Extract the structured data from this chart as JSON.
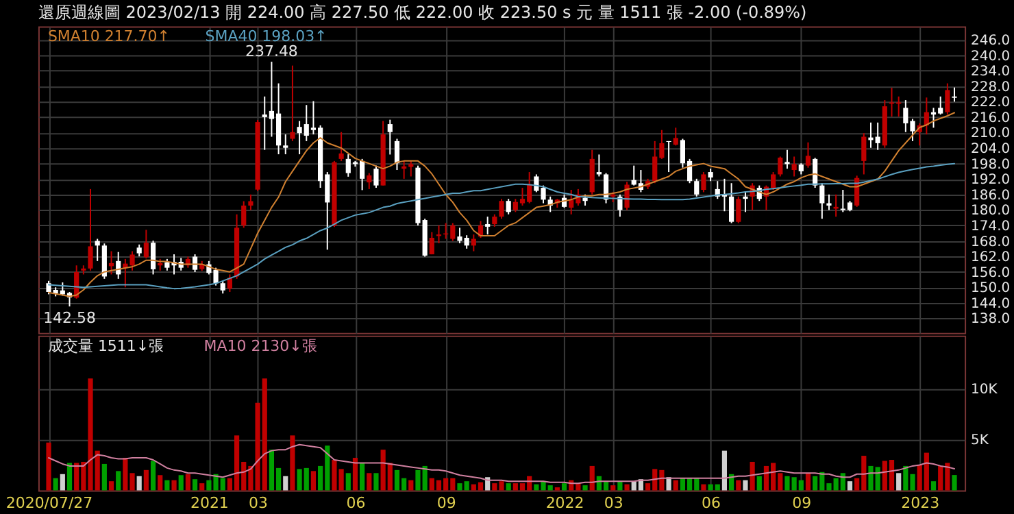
{
  "chart_data": [
    {
      "type": "candlestick",
      "title": "還原週線圖  2023/02/13  開 224.00  高 227.50  低 222.00  收 223.50 s 元  量 1511 張  -2.00 (-0.89%)",
      "categories": [
        "2020/07/27",
        null,
        null,
        null,
        null,
        null,
        null,
        null,
        null,
        null,
        null,
        null,
        null,
        null,
        null,
        null,
        null,
        null,
        null,
        null,
        null,
        null,
        null,
        "2021",
        null,
        null,
        null,
        null,
        null,
        null,
        "03",
        null,
        null,
        null,
        null,
        null,
        null,
        null,
        null,
        null,
        null,
        null,
        null,
        null,
        "06",
        null,
        null,
        null,
        null,
        null,
        null,
        null,
        null,
        null,
        null,
        null,
        null,
        "09",
        null,
        null,
        null,
        null,
        null,
        null,
        null,
        null,
        null,
        null,
        null,
        null,
        null,
        null,
        null,
        null,
        "2022",
        null,
        null,
        null,
        null,
        null,
        null,
        "03",
        null,
        null,
        null,
        null,
        null,
        null,
        null,
        null,
        null,
        null,
        null,
        null,
        null,
        "06",
        null,
        null,
        null,
        null,
        null,
        null,
        null,
        null,
        null,
        null,
        null,
        null,
        "09",
        null,
        null,
        null,
        null,
        null,
        null,
        null,
        null,
        null,
        null,
        null,
        null,
        null,
        null,
        null,
        null,
        "2023",
        null,
        null,
        null,
        null,
        null
      ],
      "ohlc": [
        [
          151.6,
          152.5,
          147.3,
          148.2
        ],
        [
          149,
          150,
          146.5,
          147.6
        ],
        [
          148.8,
          151.9,
          146.8,
          147.3
        ],
        [
          147.8,
          148.2,
          142.58,
          146.1
        ],
        [
          146,
          158.5,
          145.6,
          155.9
        ],
        [
          156.5,
          158.5,
          155,
          157.3
        ],
        [
          157.3,
          188.1,
          156.5,
          165.9
        ],
        [
          168,
          168.8,
          160.2,
          166.2
        ],
        [
          166.2,
          167,
          153.3,
          154.2
        ],
        [
          158.2,
          164,
          155,
          159.4
        ],
        [
          160.2,
          163.7,
          153.3,
          155
        ],
        [
          157.5,
          161,
          150,
          159.2
        ],
        [
          158.5,
          164,
          156.5,
          162.7
        ],
        [
          165.4,
          166.6,
          162,
          163.2
        ],
        [
          161.7,
          172.3,
          161.2,
          167.3
        ],
        [
          167.3,
          168.1,
          155,
          157
        ],
        [
          158.5,
          161,
          156.5,
          159.4
        ],
        [
          159.7,
          161,
          156.5,
          157.6
        ],
        [
          159.9,
          162.8,
          155,
          158.5
        ],
        [
          159.9,
          161.4,
          156.5,
          157.6
        ],
        [
          158.5,
          161.9,
          157.6,
          161
        ],
        [
          161.9,
          162.8,
          155.9,
          156.8
        ],
        [
          157.1,
          160.2,
          156.4,
          158.9
        ],
        [
          158.9,
          160.2,
          155,
          155.6
        ],
        [
          156.8,
          157.6,
          150.7,
          151.6
        ],
        [
          151.6,
          152.5,
          147.6,
          148.8
        ],
        [
          149.5,
          155,
          148.2,
          153.7
        ],
        [
          154.2,
          178.3,
          153.3,
          173.1
        ],
        [
          174,
          183.4,
          173.1,
          181.7
        ],
        [
          181.7,
          186,
          180,
          183.4
        ],
        [
          187.9,
          214.9,
          187.3,
          214.1
        ],
        [
          217,
          224,
          203.3,
          216
        ],
        [
          218.4,
          237.48,
          208.4,
          215.3
        ],
        [
          217.4,
          229.1,
          201.6,
          205
        ],
        [
          205,
          209.3,
          201.6,
          204.1
        ],
        [
          207.6,
          236,
          206.7,
          210.2
        ],
        [
          212.2,
          214.5,
          201.6,
          209.8
        ],
        [
          213.3,
          220.7,
          206.7,
          208.8
        ],
        [
          211.9,
          222.2,
          209.3,
          211
        ],
        [
          211.9,
          212.8,
          188.6,
          191.2
        ],
        [
          193.8,
          194.7,
          164.6,
          182.9
        ],
        [
          173.9,
          199,
          173.4,
          198.5
        ],
        [
          199.8,
          210.2,
          199,
          201.9
        ],
        [
          199.8,
          201.6,
          192.9,
          194.3
        ],
        [
          198.5,
          199,
          196.8,
          197.8
        ],
        [
          199,
          199.8,
          187.7,
          192.1
        ],
        [
          190.7,
          194.3,
          188.1,
          193.4
        ],
        [
          196,
          197.2,
          188.6,
          189.5
        ],
        [
          189.5,
          214.5,
          189.5,
          209.3
        ],
        [
          213.3,
          215,
          201.5,
          210.2
        ],
        [
          206.7,
          207.6,
          195.5,
          198.1
        ],
        [
          196,
          199,
          192.1,
          196.9
        ],
        [
          196.7,
          199,
          193,
          197.8
        ],
        [
          196.4,
          197.2,
          174,
          174.9
        ],
        [
          176.1,
          176.6,
          161.9,
          162.3
        ],
        [
          162.8,
          171.4,
          162.8,
          169.2
        ],
        [
          169.9,
          174,
          167.1,
          170.5
        ],
        [
          170.5,
          174.9,
          168.8,
          170.9
        ],
        [
          168.8,
          174.9,
          168,
          174
        ],
        [
          169.7,
          173.1,
          167.1,
          168
        ],
        [
          169.2,
          170.2,
          165,
          166.2
        ],
        [
          166.2,
          170.5,
          164,
          168.8
        ],
        [
          169.7,
          175.7,
          169.2,
          174
        ],
        [
          174.5,
          177.4,
          170.5,
          173.5
        ],
        [
          174.5,
          178.3,
          173.5,
          177.4
        ],
        [
          177.4,
          184.3,
          176.6,
          183.5
        ],
        [
          183.5,
          184.3,
          178.3,
          179.2
        ],
        [
          180,
          184.3,
          179.2,
          183.1
        ],
        [
          182.6,
          188.6,
          181.7,
          184.3
        ],
        [
          183.1,
          194.7,
          182.6,
          190
        ],
        [
          193,
          193.8,
          186.9,
          187.4
        ],
        [
          188.6,
          189.5,
          182.6,
          184
        ],
        [
          184,
          185.2,
          179.2,
          181.7
        ],
        [
          182.6,
          184.3,
          180.9,
          184
        ],
        [
          184.7,
          186,
          180.9,
          181.2
        ],
        [
          180.9,
          187.8,
          178.3,
          183.8
        ],
        [
          182.6,
          188.1,
          181.7,
          186
        ],
        [
          184.7,
          186,
          181.7,
          183.5
        ],
        [
          186.9,
          203.3,
          186,
          199.8
        ],
        [
          194.7,
          201.5,
          193,
          193.8
        ],
        [
          193.8,
          194.3,
          182.6,
          184
        ],
        [
          185.2,
          186.9,
          183,
          186
        ],
        [
          185.2,
          186,
          177.4,
          180
        ],
        [
          180.9,
          190.9,
          180,
          189.8
        ],
        [
          191.6,
          197.2,
          189.5,
          189.8
        ],
        [
          190.4,
          195.5,
          186.9,
          187.8
        ],
        [
          189,
          192.1,
          188.1,
          191.2
        ],
        [
          191.2,
          206.7,
          190.4,
          200.7
        ],
        [
          200.2,
          211,
          199.8,
          205.9
        ],
        [
          206.7,
          206.7,
          194.7,
          206.4
        ],
        [
          205.3,
          211.9,
          205,
          207.9
        ],
        [
          207.1,
          207.6,
          196.4,
          198.1
        ],
        [
          199,
          199.8,
          190.4,
          191.2
        ],
        [
          191.2,
          192.1,
          185.2,
          186
        ],
        [
          187.8,
          194.7,
          186.9,
          193.8
        ],
        [
          194.7,
          196,
          191.2,
          192.6
        ],
        [
          188.1,
          191.2,
          184.3,
          185.2
        ],
        [
          186,
          192.1,
          179.5,
          185.2
        ],
        [
          185.2,
          190.4,
          174.9,
          175.4
        ],
        [
          175.4,
          185.2,
          174.9,
          184.3
        ],
        [
          185.2,
          186.9,
          179.2,
          184.3
        ],
        [
          185.2,
          190.4,
          180,
          189.5
        ],
        [
          188.6,
          189.5,
          183.5,
          184.3
        ],
        [
          185.2,
          189.5,
          180,
          189
        ],
        [
          188.6,
          194.7,
          187.8,
          193.8
        ],
        [
          193.8,
          200.7,
          193,
          200.3
        ],
        [
          198.6,
          203.3,
          196,
          197.8
        ],
        [
          195.5,
          200.7,
          193,
          197.8
        ],
        [
          197.6,
          198.1,
          193.8,
          195
        ],
        [
          197.2,
          206.2,
          196.4,
          201
        ],
        [
          199.8,
          200.2,
          188.6,
          189.5
        ],
        [
          189.5,
          190.4,
          176.6,
          182.6
        ],
        [
          182.6,
          186,
          180,
          181.7
        ],
        [
          180.5,
          186,
          177.4,
          181.2
        ],
        [
          180.5,
          187.8,
          179.2,
          180
        ],
        [
          182.9,
          183.5,
          179.5,
          180
        ],
        [
          181.7,
          193.3,
          181.2,
          192.4
        ],
        [
          199,
          209.8,
          193.8,
          208.4
        ],
        [
          208.1,
          213.9,
          204.1,
          207.1
        ],
        [
          208.4,
          213.9,
          203.3,
          205.9
        ],
        [
          205,
          222.6,
          204.1,
          220.2
        ],
        [
          221.2,
          227.4,
          216.2,
          221.7
        ],
        [
          221.2,
          224,
          216.2,
          221.7
        ],
        [
          219.6,
          222.6,
          210.2,
          213.6
        ],
        [
          214.5,
          215.3,
          206.7,
          210.5
        ],
        [
          210.2,
          213.6,
          205,
          212.8
        ],
        [
          212.8,
          223.6,
          209.3,
          217.9
        ],
        [
          217.9,
          219.6,
          211.9,
          217
        ],
        [
          219.6,
          224,
          217,
          217.4
        ],
        [
          217.9,
          229.1,
          217,
          226.5
        ],
        [
          224,
          227.5,
          222,
          223.5
        ]
      ],
      "colors": [
        "#ffffff",
        "#ffffff",
        "#ffffff",
        "#ffffff",
        "#c00000",
        "#c00000",
        "#c00000",
        "#ffffff",
        "#ffffff",
        "#c00000",
        "#ffffff",
        "#c00000",
        "#c00000",
        "#ffffff",
        "#c00000",
        "#ffffff",
        "#c00000",
        "#ffffff",
        "#ffffff",
        "#ffffff",
        "#c00000",
        "#ffffff",
        "#c00000",
        "#ffffff",
        "#ffffff",
        "#ffffff",
        "#c00000",
        "#c00000",
        "#c00000",
        "#c00000",
        "#c00000",
        "#ffffff",
        "#ffffff",
        "#ffffff",
        "#ffffff",
        "#c00000",
        "#ffffff",
        "#ffffff",
        "#ffffff",
        "#ffffff",
        "#ffffff",
        "#c00000",
        "#c00000",
        "#ffffff",
        "#ffffff",
        "#ffffff",
        "#c00000",
        "#ffffff",
        "#c00000",
        "#ffffff",
        "#ffffff",
        "#c00000",
        "#c00000",
        "#ffffff",
        "#ffffff",
        "#c00000",
        "#c00000",
        "#c00000",
        "#c00000",
        "#ffffff",
        "#ffffff",
        "#c00000",
        "#c00000",
        "#ffffff",
        "#c00000",
        "#c00000",
        "#ffffff",
        "#c00000",
        "#c00000",
        "#c00000",
        "#ffffff",
        "#ffffff",
        "#ffffff",
        "#c00000",
        "#ffffff",
        "#c00000",
        "#c00000",
        "#ffffff",
        "#c00000",
        "#ffffff",
        "#ffffff",
        "#c00000",
        "#ffffff",
        "#c00000",
        "#ffffff",
        "#ffffff",
        "#c00000",
        "#c00000",
        "#c00000",
        "#ffffff",
        "#c00000",
        "#ffffff",
        "#ffffff",
        "#ffffff",
        "#c00000",
        "#ffffff",
        "#ffffff",
        "#ffffff",
        "#ffffff",
        "#c00000",
        "#ffffff",
        "#c00000",
        "#ffffff",
        "#c00000",
        "#c00000",
        "#c00000",
        "#ffffff",
        "#c00000",
        "#ffffff",
        "#c00000",
        "#ffffff",
        "#ffffff",
        "#ffffff",
        "#c00000",
        "#ffffff",
        "#ffffff",
        "#c00000",
        "#c00000",
        "#ffffff",
        "#ffffff",
        "#c00000",
        "#c00000",
        "#c00000",
        "#ffffff",
        "#ffffff",
        "#c00000",
        "#c00000",
        "#ffffff",
        "#ffffff",
        "#c00000",
        "#ffffff"
      ],
      "series": [
        {
          "name": "SMA10 217.70↑",
          "type": "line",
          "color": "#d08030",
          "values": [
            148,
            147.5,
            147,
            146.5,
            147,
            149,
            152,
            154.5,
            156,
            156.5,
            157,
            157.5,
            158,
            159,
            160.5,
            160.5,
            160,
            160,
            159.5,
            159,
            159,
            159,
            159,
            158,
            157,
            156.5,
            156,
            157.5,
            159,
            165,
            171,
            176,
            181,
            185,
            191,
            195,
            199,
            203,
            206,
            208,
            206,
            205,
            204,
            202,
            200,
            199,
            198,
            197,
            196,
            197,
            198.5,
            199,
            199,
            199,
            197,
            194,
            190,
            186,
            183,
            179,
            176,
            172,
            170,
            170,
            170,
            172,
            174,
            175,
            177,
            179,
            181,
            181.5,
            182,
            183,
            183.5,
            184,
            185,
            185.5,
            185.5,
            186,
            186,
            186.5,
            187,
            188,
            188.5,
            189,
            190,
            191,
            192,
            193,
            195,
            196,
            197,
            197.5,
            198,
            197,
            196.5,
            196,
            194,
            192,
            189,
            188,
            187,
            186,
            187,
            188.5,
            190,
            191,
            192.5,
            193.5,
            194,
            193,
            192,
            191,
            190,
            189,
            189,
            190,
            191,
            192,
            195,
            199,
            203,
            206,
            209,
            212,
            213,
            214.5,
            215.5,
            216.5,
            217.7
          ]
        },
        {
          "name": "SMA40 198.03↑",
          "type": "line",
          "color": "#5aa0c0",
          "values": [
            151,
            150.8,
            150.6,
            150.4,
            150.2,
            150,
            150.2,
            150.4,
            150.6,
            150.8,
            151,
            151,
            151,
            151,
            151,
            150.6,
            150.2,
            149.8,
            149.5,
            149.6,
            149.9,
            150.2,
            150.6,
            151,
            151.5,
            152.5,
            153.5,
            154.5,
            156,
            157.5,
            159,
            161,
            162.5,
            164,
            165.5,
            166.5,
            168,
            169,
            170.5,
            172,
            173,
            174.5,
            176,
            177,
            178,
            178.5,
            179,
            180,
            181,
            181.5,
            182.5,
            183,
            183.5,
            184,
            184.5,
            185,
            185.5,
            186,
            186.5,
            186.5,
            187,
            187.5,
            187.5,
            188,
            188.5,
            189,
            189.5,
            190,
            190,
            189.8,
            189.5,
            189,
            188,
            187,
            186.5,
            186,
            185.2,
            185,
            184.8,
            184.7,
            184.6,
            184.5,
            184.4,
            184.3,
            184.2,
            184.2,
            184.1,
            184.1,
            184,
            184,
            184,
            184,
            184.2,
            184.6,
            185,
            185.4,
            185.8,
            186,
            186.3,
            186.6,
            187,
            187.2,
            187.5,
            188,
            188.3,
            188.6,
            189,
            189.3,
            189.6,
            190,
            190,
            190.1,
            190.1,
            190.2,
            190.2,
            190.3,
            190.3,
            190.8,
            191.4,
            192,
            192.9,
            193.8,
            194.6,
            195.2,
            195.7,
            196.2,
            196.7,
            197,
            197.4,
            197.7,
            198
          ]
        }
      ],
      "annotations": [
        {
          "text": "237.48",
          "y": 237.48
        },
        {
          "text": "142.58",
          "y": 142.58
        }
      ],
      "ylim": [
        132.3,
        251.2
      ],
      "yticks": [
        {
          "value": 138,
          "label": "138.0"
        },
        {
          "value": 144,
          "label": "144.0"
        },
        {
          "value": 150,
          "label": "150.0"
        },
        {
          "value": 156,
          "label": "156.0"
        },
        {
          "value": 162,
          "label": "162.0"
        },
        {
          "value": 168,
          "label": "168.0"
        },
        {
          "value": 174,
          "label": "174.0"
        },
        {
          "value": 180,
          "label": "180.0"
        },
        {
          "value": 186,
          "label": "186.0"
        },
        {
          "value": 192,
          "label": "192.0"
        },
        {
          "value": 198,
          "label": "198.0"
        },
        {
          "value": 204,
          "label": "204.0"
        },
        {
          "value": 210,
          "label": "210.0"
        },
        {
          "value": 216,
          "label": "216.0"
        },
        {
          "value": 222,
          "label": "222.0"
        },
        {
          "value": 228,
          "label": "228.0"
        },
        {
          "value": 234,
          "label": "234.0"
        },
        {
          "value": 240,
          "label": "240.0"
        },
        {
          "value": 246,
          "label": "246.0"
        }
      ],
      "grid": true,
      "tick_labels": "y",
      "legend": "top left"
    },
    {
      "type": "bar",
      "categories": [
        "2020/07/27",
        null,
        null,
        null,
        null,
        null,
        null,
        null,
        null,
        null,
        null,
        null,
        null,
        null,
        null,
        null,
        null,
        null,
        null,
        null,
        null,
        null,
        null,
        "2021",
        null,
        null,
        null,
        null,
        null,
        null,
        "03",
        null,
        null,
        null,
        null,
        null,
        null,
        null,
        null,
        null,
        null,
        null,
        null,
        null,
        "06",
        null,
        null,
        null,
        null,
        null,
        null,
        null,
        null,
        null,
        null,
        null,
        null,
        "09",
        null,
        null,
        null,
        null,
        null,
        null,
        null,
        null,
        null,
        null,
        null,
        null,
        null,
        null,
        null,
        null,
        "2022",
        null,
        null,
        null,
        null,
        null,
        null,
        "03",
        null,
        null,
        null,
        null,
        null,
        null,
        null,
        null,
        null,
        null,
        null,
        null,
        null,
        "06",
        null,
        null,
        null,
        null,
        null,
        null,
        null,
        null,
        null,
        null,
        null,
        null,
        "09",
        null,
        null,
        null,
        null,
        null,
        null,
        null,
        null,
        null,
        null,
        null,
        null,
        null,
        null,
        null,
        null,
        "2023",
        null,
        null,
        null,
        null,
        null
      ],
      "series": [
        {
          "name": "成交量 1511↓張",
          "type": "bar",
          "values": [
            4700,
            1200,
            1600,
            2700,
            2700,
            2800,
            11000,
            3900,
            2600,
            900,
            1900,
            3200,
            1700,
            1400,
            2000,
            2900,
            1500,
            1000,
            1000,
            1500,
            1600,
            1100,
            700,
            1000,
            1600,
            1200,
            1200,
            5400,
            2800,
            2400,
            8600,
            11000,
            4000,
            2200,
            1400,
            5400,
            2100,
            2200,
            1900,
            2400,
            4400,
            3000,
            2100,
            1700,
            3200,
            2700,
            1700,
            1700,
            4000,
            2700,
            2000,
            1200,
            1000,
            2000,
            2400,
            1200,
            1000,
            1200,
            1200,
            700,
            900,
            600,
            800,
            1300,
            700,
            900,
            700,
            700,
            700,
            1400,
            600,
            900,
            500,
            300,
            700,
            1000,
            700,
            500,
            2400,
            1400,
            900,
            500,
            900,
            600,
            900,
            1100,
            700,
            2100,
            2000,
            1300,
            1000,
            1200,
            1200,
            1200,
            600,
            600,
            600,
            3900,
            1600,
            1000,
            1000,
            2800,
            1400,
            2400,
            2700,
            1700,
            1400,
            1300,
            1000,
            1700,
            1400,
            1800,
            700,
            1200,
            1700,
            900,
            1200,
            3400,
            2400,
            2300,
            2900,
            3000,
            1700,
            2400,
            1600,
            2500,
            3700,
            900,
            2400,
            2700,
            1511
          ],
          "colors": [
            "#c00000",
            "#00a000",
            "#d0d0d0",
            "#00a000",
            "#c00000",
            "#c00000",
            "#c00000",
            "#c00000",
            "#00a000",
            "#c00000",
            "#00a000",
            "#c00000",
            "#c00000",
            "#d0d0d0",
            "#c00000",
            "#00a000",
            "#c00000",
            "#00a000",
            "#c00000",
            "#00a000",
            "#c00000",
            "#00a000",
            "#c00000",
            "#00a000",
            "#00a000",
            "#00a000",
            "#c00000",
            "#c00000",
            "#c00000",
            "#c00000",
            "#c00000",
            "#c00000",
            "#00a000",
            "#00a000",
            "#d0d0d0",
            "#c00000",
            "#00a000",
            "#00a000",
            "#c00000",
            "#00a000",
            "#00a000",
            "#c00000",
            "#c00000",
            "#00a000",
            "#c00000",
            "#00a000",
            "#c00000",
            "#00a000",
            "#c00000",
            "#c00000",
            "#00a000",
            "#00a000",
            "#c00000",
            "#00a000",
            "#00a000",
            "#c00000",
            "#c00000",
            "#c00000",
            "#c00000",
            "#00a000",
            "#00a000",
            "#c00000",
            "#c00000",
            "#d0d0d0",
            "#c00000",
            "#c00000",
            "#00a000",
            "#c00000",
            "#c00000",
            "#c00000",
            "#00a000",
            "#00a000",
            "#00a000",
            "#c00000",
            "#00a000",
            "#c00000",
            "#c00000",
            "#00a000",
            "#c00000",
            "#00a000",
            "#00a000",
            "#c00000",
            "#00a000",
            "#c00000",
            "#d0d0d0",
            "#d0d0d0",
            "#c00000",
            "#c00000",
            "#c00000",
            "#d0d0d0",
            "#c00000",
            "#00a000",
            "#00a000",
            "#00a000",
            "#c00000",
            "#00a000",
            "#00a000",
            "#d0d0d0",
            "#00a000",
            "#c00000",
            "#d0d0d0",
            "#c00000",
            "#00a000",
            "#c00000",
            "#c00000",
            "#c00000",
            "#00a000",
            "#00a000",
            "#00a000",
            "#c00000",
            "#00a000",
            "#00a000",
            "#00a000",
            "#00a000",
            "#00a000",
            "#d0d0d0",
            "#c00000",
            "#c00000",
            "#00a000",
            "#00a000",
            "#c00000",
            "#c00000",
            "#d0d0d0",
            "#00a000",
            "#00a000",
            "#c00000",
            "#c00000",
            "#00a000",
            "#c00000",
            "#c00000",
            "#00a000"
          ]
        },
        {
          "name": "MA10 2130↓張",
          "type": "line",
          "color": "#d080a0",
          "values": [
            3200,
            2900,
            2600,
            2400,
            2400,
            2400,
            3000,
            3500,
            3400,
            3200,
            3100,
            3100,
            3200,
            3200,
            3200,
            3000,
            2600,
            2200,
            2000,
            1900,
            1700,
            1700,
            1600,
            1500,
            1400,
            1300,
            1500,
            1700,
            1800,
            2100,
            2900,
            3600,
            3900,
            4000,
            4000,
            4300,
            4500,
            4400,
            4300,
            4200,
            3600,
            3000,
            2900,
            2800,
            2700,
            2700,
            2700,
            2700,
            2700,
            2600,
            2500,
            2400,
            2300,
            2200,
            2100,
            2000,
            2000,
            1900,
            1700,
            1500,
            1400,
            1300,
            1200,
            1000,
            1000,
            1000,
            900,
            900,
            900,
            900,
            900,
            900,
            800,
            800,
            800,
            700,
            700,
            800,
            800,
            900,
            900,
            900,
            900,
            900,
            900,
            1000,
            1000,
            1100,
            1200,
            1200,
            1200,
            1200,
            1200,
            1200,
            1200,
            1200,
            1200,
            1200,
            1300,
            1400,
            1400,
            1500,
            1600,
            1700,
            1800,
            1900,
            1800,
            1700,
            1700,
            1700,
            1700,
            1600,
            1600,
            1400,
            1300,
            1300,
            1600,
            1600,
            1700,
            1700,
            1800,
            1900,
            2000,
            2200,
            2400,
            2500,
            2700,
            2600,
            2400,
            2300,
            2130
          ]
        }
      ],
      "ylim": [
        0,
        15200
      ],
      "yticks": [
        {
          "value": 5000,
          "label": "5K"
        },
        {
          "value": 10000,
          "label": "10K"
        }
      ],
      "grid": true,
      "legend": "top left"
    }
  ]
}
